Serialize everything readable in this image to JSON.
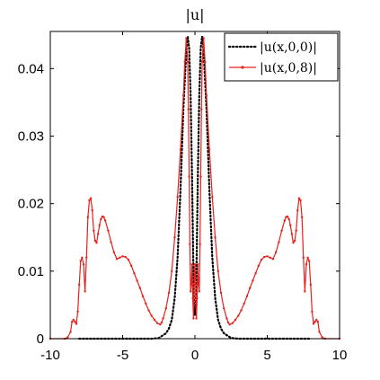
{
  "chart_data": {
    "type": "line",
    "title": "|u|",
    "xlabel": "",
    "ylabel": "",
    "xlim": [
      -10,
      10
    ],
    "ylim": [
      0,
      0.0455
    ],
    "xticks": [
      -10,
      -5,
      0,
      5,
      10
    ],
    "xtick_labels": [
      "-10",
      "-5",
      "0",
      "5",
      "10"
    ],
    "yticks": [
      0,
      0.01,
      0.02,
      0.03,
      0.04
    ],
    "ytick_labels": [
      "0",
      "0.01",
      "0.02",
      "0.03",
      "0.04"
    ],
    "grid": false,
    "legend_position": "top-right",
    "series": [
      {
        "name": "|u(x,0,0)|",
        "style": "dotted",
        "color": "#000000",
        "x": [
          -8.0,
          -3.0,
          -2.5,
          -2.0,
          -1.8,
          -1.6,
          -1.4,
          -1.2,
          -1.0,
          -0.8,
          -0.6,
          -0.5,
          -0.4,
          -0.3,
          -0.2,
          -0.12,
          -0.06,
          0.0,
          0.06,
          0.12,
          0.2,
          0.3,
          0.4,
          0.5,
          0.6,
          0.8,
          1.0,
          1.2,
          1.4,
          1.6,
          1.8,
          2.0,
          2.5,
          3.0,
          8.0
        ],
        "y": [
          0.0,
          0.0,
          0.0001,
          0.0008,
          0.0015,
          0.0028,
          0.006,
          0.012,
          0.022,
          0.034,
          0.0425,
          0.0448,
          0.043,
          0.036,
          0.024,
          0.012,
          0.005,
          0.0035,
          0.005,
          0.012,
          0.024,
          0.036,
          0.043,
          0.0448,
          0.0425,
          0.034,
          0.022,
          0.012,
          0.006,
          0.0028,
          0.0015,
          0.0008,
          0.0001,
          0.0,
          0.0
        ]
      },
      {
        "name": "|u(x,0,8)|",
        "style": "solid-with-points",
        "color": "#e8201a",
        "x": [
          -10.0,
          -9.0,
          -8.8,
          -8.6,
          -8.5,
          -8.4,
          -8.3,
          -8.2,
          -8.1,
          -8.0,
          -7.9,
          -7.8,
          -7.7,
          -7.6,
          -7.5,
          -7.4,
          -7.3,
          -7.2,
          -7.1,
          -7.0,
          -6.9,
          -6.8,
          -6.7,
          -6.6,
          -6.5,
          -6.4,
          -6.3,
          -6.2,
          -6.0,
          -5.8,
          -5.6,
          -5.4,
          -5.2,
          -5.0,
          -4.8,
          -4.6,
          -4.4,
          -4.2,
          -4.0,
          -3.8,
          -3.6,
          -3.4,
          -3.2,
          -3.0,
          -2.8,
          -2.6,
          -2.4,
          -2.3,
          -2.2,
          -2.0,
          -1.8,
          -1.6,
          -1.4,
          -1.2,
          -1.0,
          -0.8,
          -0.7,
          -0.6,
          -0.5,
          -0.45,
          -0.4,
          -0.35,
          -0.3,
          -0.25,
          -0.2,
          -0.15,
          -0.1,
          -0.05,
          0.0,
          0.05,
          0.1,
          0.15,
          0.2,
          0.25,
          0.3,
          0.35,
          0.4,
          0.45,
          0.5,
          0.6,
          0.7,
          0.8,
          1.0,
          1.2,
          1.4,
          1.6,
          1.8,
          2.0,
          2.2,
          2.3,
          2.4,
          2.6,
          2.8,
          3.0,
          3.2,
          3.4,
          3.6,
          3.8,
          4.0,
          4.2,
          4.4,
          4.6,
          4.8,
          5.0,
          5.2,
          5.4,
          5.6,
          5.8,
          6.0,
          6.2,
          6.3,
          6.4,
          6.5,
          6.6,
          6.7,
          6.8,
          6.9,
          7.0,
          7.1,
          7.2,
          7.3,
          7.4,
          7.5,
          7.6,
          7.7,
          7.8,
          7.9,
          8.0,
          8.1,
          8.2,
          8.3,
          8.4,
          8.5,
          8.6,
          8.8,
          9.0,
          10.0
        ],
        "y": [
          0.0,
          0.0,
          0.0002,
          0.001,
          0.0025,
          0.0028,
          0.0025,
          0.0022,
          0.004,
          0.008,
          0.0115,
          0.012,
          0.011,
          0.007,
          0.012,
          0.018,
          0.0205,
          0.0208,
          0.019,
          0.016,
          0.0145,
          0.0142,
          0.0155,
          0.0168,
          0.0177,
          0.0181,
          0.018,
          0.0175,
          0.016,
          0.0143,
          0.0128,
          0.0118,
          0.012,
          0.0122,
          0.0121,
          0.0117,
          0.0108,
          0.0097,
          0.0086,
          0.0075,
          0.0063,
          0.0052,
          0.0042,
          0.0034,
          0.0028,
          0.0023,
          0.0021,
          0.0024,
          0.003,
          0.0045,
          0.0068,
          0.01,
          0.015,
          0.021,
          0.028,
          0.036,
          0.041,
          0.0445,
          0.041,
          0.034,
          0.024,
          0.014,
          0.007,
          0.008,
          0.011,
          0.006,
          0.003,
          0.008,
          0.011,
          0.008,
          0.003,
          0.006,
          0.011,
          0.008,
          0.007,
          0.014,
          0.024,
          0.034,
          0.041,
          0.0445,
          0.041,
          0.036,
          0.028,
          0.021,
          0.015,
          0.01,
          0.0068,
          0.0045,
          0.003,
          0.0024,
          0.0021,
          0.0023,
          0.0028,
          0.0034,
          0.0042,
          0.0052,
          0.0063,
          0.0075,
          0.0086,
          0.0097,
          0.0108,
          0.0117,
          0.0121,
          0.0122,
          0.012,
          0.0118,
          0.0128,
          0.0143,
          0.016,
          0.0175,
          0.018,
          0.0181,
          0.0177,
          0.0168,
          0.0155,
          0.0142,
          0.0145,
          0.016,
          0.019,
          0.0208,
          0.0205,
          0.018,
          0.012,
          0.007,
          0.011,
          0.012,
          0.0115,
          0.008,
          0.004,
          0.0022,
          0.0025,
          0.0028,
          0.0025,
          0.001,
          0.0002,
          0.0,
          0.0
        ]
      }
    ]
  }
}
